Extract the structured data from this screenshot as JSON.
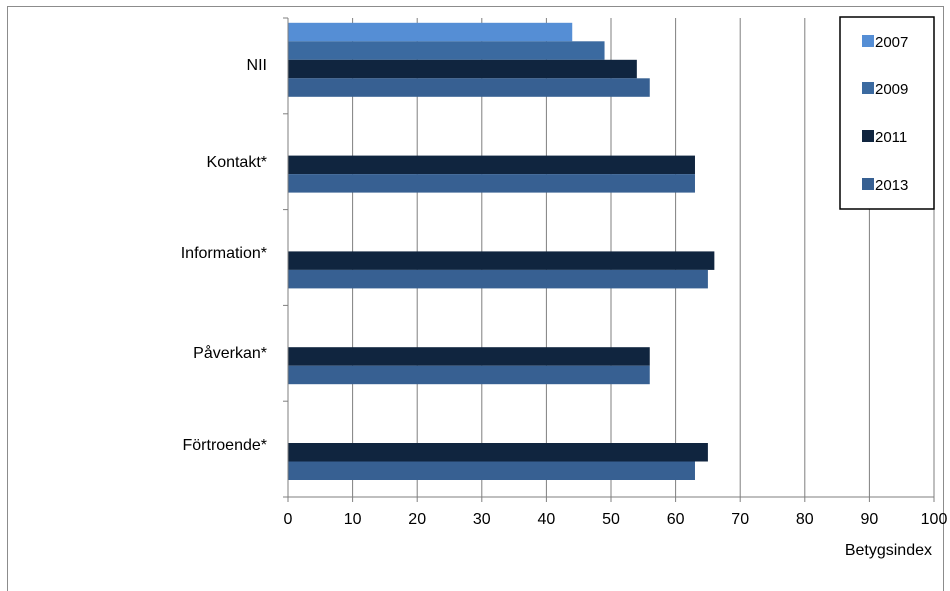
{
  "chart_data": {
    "type": "bar",
    "orientation": "horizontal",
    "categories": [
      "NII",
      "Kontakt*",
      "Information*",
      "Påverkan*",
      "Förtroende*"
    ],
    "series": [
      {
        "name": "2007",
        "color": "#558ed5",
        "values": [
          44,
          null,
          null,
          null,
          null
        ]
      },
      {
        "name": "2009",
        "color": "#3b6aa0",
        "values": [
          49,
          null,
          null,
          null,
          null
        ]
      },
      {
        "name": "2011",
        "color": "#10253f",
        "values": [
          54,
          63,
          66,
          56,
          65
        ]
      },
      {
        "name": "2013",
        "color": "#376092",
        "values": [
          56,
          63,
          65,
          56,
          63
        ]
      }
    ],
    "xlabel": "Betygsindex",
    "ylabel": "",
    "xlim": [
      0,
      100
    ],
    "xticks": [
      "0",
      "10",
      "20",
      "30",
      "40",
      "50",
      "60",
      "70",
      "80",
      "90",
      "100"
    ],
    "grid": "vertical",
    "legend_position": "top-right"
  }
}
